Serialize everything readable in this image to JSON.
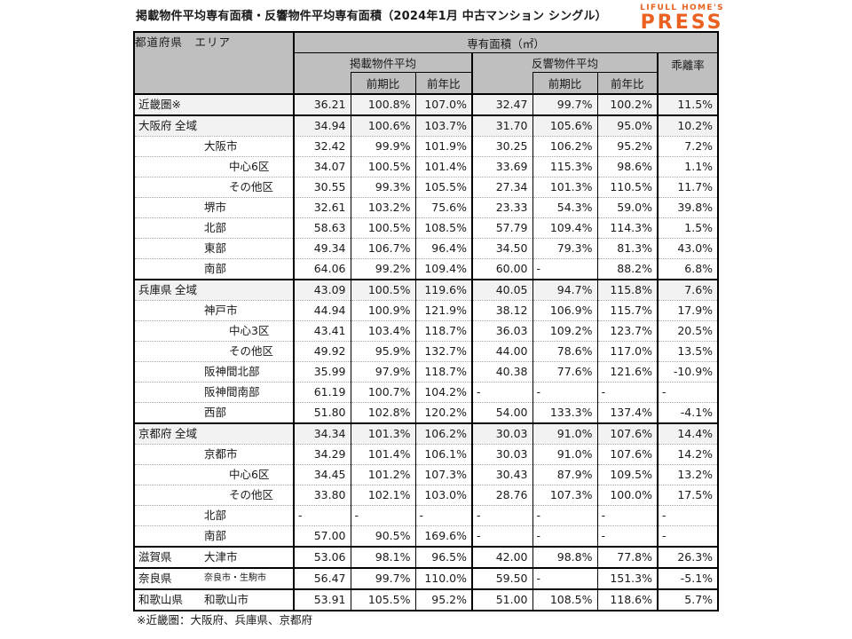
{
  "title": "掲載物件平均専有面積・反響物件平均専有面積（2024年1月 中古マンション シングル）",
  "logo": {
    "top": "LIFULL HOME'S",
    "main": "PRESS"
  },
  "footnote": "※近畿圏：大阪府、兵庫県、京都府",
  "colors": {
    "accent": "#EB6120",
    "header_bg": "#BFBFBF",
    "shade_bg": "#F2F2F2"
  },
  "table": {
    "corner_header": "都道府県　エリア",
    "span_header": "専有面積（㎡）",
    "group_headers": {
      "listed": "掲載物件平均",
      "response": "反響物件平均",
      "deviation": "乖離率"
    },
    "sub_headers": {
      "prev_period": "前期比",
      "prev_year": "前年比"
    },
    "rows": [
      {
        "pref": "近畿圏※",
        "area": "",
        "level": "",
        "shade": true,
        "thick": false,
        "cells": [
          "36.21",
          "100.8%",
          "107.0%",
          "32.47",
          "99.7%",
          "100.2%",
          "11.5%"
        ]
      },
      {
        "pref": "大阪府",
        "area": "全域",
        "level": "z",
        "shade": true,
        "thick": true,
        "cells": [
          "34.94",
          "100.6%",
          "103.7%",
          "31.70",
          "105.6%",
          "95.0%",
          "10.2%"
        ]
      },
      {
        "pref": "",
        "area": "大阪市",
        "level": "c",
        "shade": false,
        "thick": false,
        "cells": [
          "32.42",
          "99.9%",
          "101.9%",
          "30.25",
          "106.2%",
          "95.2%",
          "7.2%"
        ]
      },
      {
        "pref": "",
        "area": "中心6区",
        "level": "w",
        "shade": false,
        "thick": false,
        "cells": [
          "34.07",
          "100.5%",
          "101.4%",
          "33.69",
          "115.3%",
          "98.6%",
          "1.1%"
        ]
      },
      {
        "pref": "",
        "area": "その他区",
        "level": "w",
        "shade": false,
        "thick": false,
        "cells": [
          "30.55",
          "99.3%",
          "105.5%",
          "27.34",
          "101.3%",
          "110.5%",
          "11.7%"
        ]
      },
      {
        "pref": "",
        "area": "堺市",
        "level": "c",
        "shade": false,
        "thick": false,
        "cells": [
          "32.61",
          "103.2%",
          "75.6%",
          "23.33",
          "54.3%",
          "59.0%",
          "39.8%"
        ]
      },
      {
        "pref": "",
        "area": "北部",
        "level": "c",
        "shade": false,
        "thick": false,
        "cells": [
          "58.63",
          "100.5%",
          "108.5%",
          "57.79",
          "109.4%",
          "114.3%",
          "1.5%"
        ]
      },
      {
        "pref": "",
        "area": "東部",
        "level": "c",
        "shade": false,
        "thick": false,
        "cells": [
          "49.34",
          "106.7%",
          "96.4%",
          "34.50",
          "79.3%",
          "81.3%",
          "43.0%"
        ]
      },
      {
        "pref": "",
        "area": "南部",
        "level": "c",
        "shade": false,
        "thick": false,
        "cells": [
          "64.06",
          "99.2%",
          "109.4%",
          "60.00",
          "-",
          "88.2%",
          "6.8%"
        ]
      },
      {
        "pref": "兵庫県",
        "area": "全域",
        "level": "z",
        "shade": true,
        "thick": true,
        "cells": [
          "43.09",
          "100.5%",
          "119.6%",
          "40.05",
          "94.7%",
          "115.8%",
          "7.6%"
        ]
      },
      {
        "pref": "",
        "area": "神戸市",
        "level": "c",
        "shade": false,
        "thick": false,
        "cells": [
          "44.94",
          "100.9%",
          "121.9%",
          "38.12",
          "106.9%",
          "115.7%",
          "17.9%"
        ]
      },
      {
        "pref": "",
        "area": "中心3区",
        "level": "w",
        "shade": false,
        "thick": false,
        "cells": [
          "43.41",
          "103.4%",
          "118.7%",
          "36.03",
          "109.2%",
          "123.7%",
          "20.5%"
        ]
      },
      {
        "pref": "",
        "area": "その他区",
        "level": "w",
        "shade": false,
        "thick": false,
        "cells": [
          "49.92",
          "95.9%",
          "132.7%",
          "44.00",
          "78.6%",
          "117.0%",
          "13.5%"
        ]
      },
      {
        "pref": "",
        "area": "阪神間北部",
        "level": "c",
        "shade": false,
        "thick": false,
        "cells": [
          "35.99",
          "97.9%",
          "118.7%",
          "40.38",
          "77.6%",
          "121.6%",
          "-10.9%"
        ]
      },
      {
        "pref": "",
        "area": "阪神間南部",
        "level": "c",
        "shade": false,
        "thick": false,
        "cells": [
          "61.19",
          "100.7%",
          "104.2%",
          "-",
          "-",
          "-",
          "-"
        ]
      },
      {
        "pref": "",
        "area": "西部",
        "level": "c",
        "shade": false,
        "thick": false,
        "cells": [
          "51.80",
          "102.8%",
          "120.2%",
          "54.00",
          "133.3%",
          "137.4%",
          "-4.1%"
        ]
      },
      {
        "pref": "京都府",
        "area": "全域",
        "level": "z",
        "shade": true,
        "thick": true,
        "cells": [
          "34.34",
          "101.3%",
          "106.2%",
          "30.03",
          "91.0%",
          "107.6%",
          "14.4%"
        ]
      },
      {
        "pref": "",
        "area": "京都市",
        "level": "c",
        "shade": false,
        "thick": false,
        "cells": [
          "34.29",
          "101.4%",
          "106.1%",
          "30.03",
          "91.0%",
          "107.6%",
          "14.2%"
        ]
      },
      {
        "pref": "",
        "area": "中心6区",
        "level": "w",
        "shade": false,
        "thick": false,
        "cells": [
          "34.45",
          "101.2%",
          "107.3%",
          "30.43",
          "87.9%",
          "109.5%",
          "13.2%"
        ]
      },
      {
        "pref": "",
        "area": "その他区",
        "level": "w",
        "shade": false,
        "thick": false,
        "cells": [
          "33.80",
          "102.1%",
          "103.0%",
          "28.76",
          "107.3%",
          "100.0%",
          "17.5%"
        ]
      },
      {
        "pref": "",
        "area": "北部",
        "level": "c",
        "shade": false,
        "thick": false,
        "cells": [
          "-",
          "-",
          "-",
          "-",
          "-",
          "-",
          "-"
        ]
      },
      {
        "pref": "",
        "area": "南部",
        "level": "c",
        "shade": false,
        "thick": false,
        "cells": [
          "57.00",
          "90.5%",
          "169.6%",
          "-",
          "-",
          "-",
          "-"
        ]
      },
      {
        "pref": "滋賀県",
        "area": "大津市",
        "level": "c",
        "shade": false,
        "thick": true,
        "cells": [
          "53.06",
          "98.1%",
          "96.5%",
          "42.00",
          "98.8%",
          "77.8%",
          "26.3%"
        ]
      },
      {
        "pref": "奈良県",
        "area": "奈良市・生駒市",
        "level": "c",
        "small": true,
        "shade": false,
        "thick": true,
        "cells": [
          "56.47",
          "99.7%",
          "110.0%",
          "59.50",
          "-",
          "151.3%",
          "-5.1%"
        ]
      },
      {
        "pref": "和歌山県",
        "area": "和歌山市",
        "level": "c",
        "shade": false,
        "thick": true,
        "cells": [
          "53.91",
          "105.5%",
          "95.2%",
          "51.00",
          "108.5%",
          "118.6%",
          "5.7%"
        ]
      }
    ]
  }
}
